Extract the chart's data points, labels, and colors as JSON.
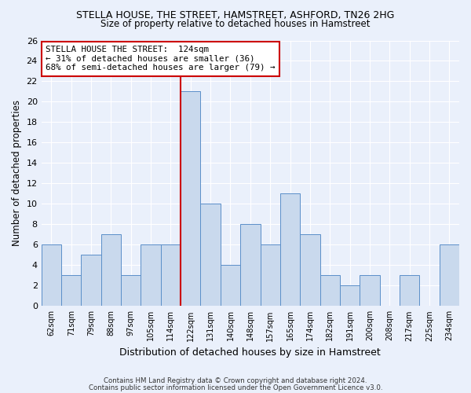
{
  "title": "STELLA HOUSE, THE STREET, HAMSTREET, ASHFORD, TN26 2HG",
  "subtitle": "Size of property relative to detached houses in Hamstreet",
  "xlabel": "Distribution of detached houses by size in Hamstreet",
  "ylabel": "Number of detached properties",
  "categories": [
    "62sqm",
    "71sqm",
    "79sqm",
    "88sqm",
    "97sqm",
    "105sqm",
    "114sqm",
    "122sqm",
    "131sqm",
    "140sqm",
    "148sqm",
    "157sqm",
    "165sqm",
    "174sqm",
    "182sqm",
    "191sqm",
    "200sqm",
    "208sqm",
    "217sqm",
    "225sqm",
    "234sqm"
  ],
  "values": [
    6,
    3,
    5,
    7,
    3,
    6,
    6,
    21,
    10,
    4,
    8,
    6,
    11,
    7,
    3,
    2,
    3,
    0,
    3,
    0,
    6
  ],
  "bar_color": "#c9d9ed",
  "bar_edge_color": "#5b8fc9",
  "highlight_line_index": 7,
  "annotation_title": "STELLA HOUSE THE STREET:  124sqm",
  "annotation_line1": "← 31% of detached houses are smaller (36)",
  "annotation_line2": "68% of semi-detached houses are larger (79) →",
  "annotation_box_facecolor": "#ffffff",
  "annotation_box_edgecolor": "#cc0000",
  "vline_color": "#cc0000",
  "ylim": [
    0,
    26
  ],
  "yticks": [
    0,
    2,
    4,
    6,
    8,
    10,
    12,
    14,
    16,
    18,
    20,
    22,
    24,
    26
  ],
  "background_color": "#eaf0fb",
  "grid_color": "#ffffff",
  "footer1": "Contains HM Land Registry data © Crown copyright and database right 2024.",
  "footer2": "Contains public sector information licensed under the Open Government Licence v3.0."
}
